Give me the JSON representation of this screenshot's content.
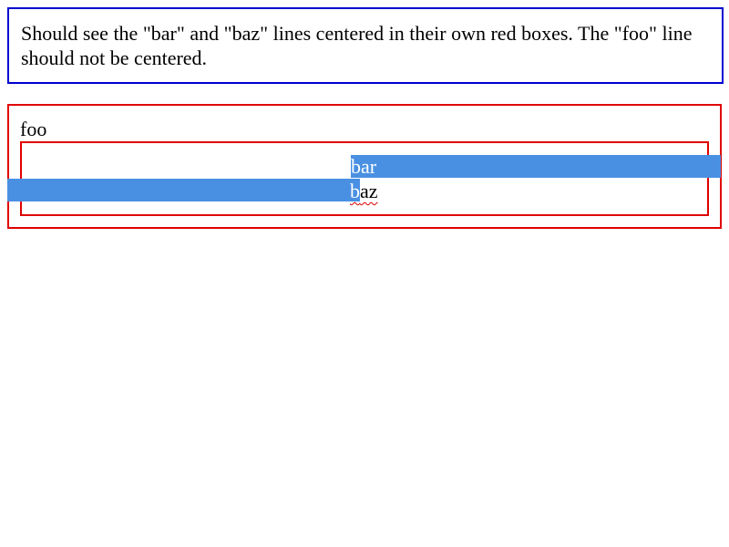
{
  "instructions": {
    "text": "Should see the \"bar\" and \"baz\" lines centered in their own red boxes. The \"foo\" line should not be centered."
  },
  "content": {
    "foo": "foo",
    "bar": "bar",
    "baz_first_char": "b",
    "baz_rest": "az"
  },
  "colors": {
    "instructions_border": "#0000d0",
    "box_border": "#e00000",
    "selection": "#4a90e2"
  }
}
